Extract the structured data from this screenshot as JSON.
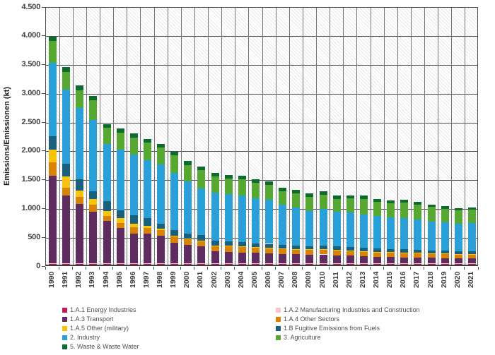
{
  "y_axis": {
    "title": "Emissions/Emissionen (kt)",
    "tick_labels": [
      "4.500",
      "4.000",
      "3.500",
      "3.000",
      "2.500",
      "2.000",
      "1.500",
      "1.000",
      "500",
      "0"
    ],
    "tick_values": [
      4500,
      4000,
      3500,
      3000,
      2500,
      2000,
      1500,
      1000,
      500,
      0
    ]
  },
  "colors": {
    "grid": "#4d4d4d",
    "vertical_grid": "#757575",
    "axis": "#3f3f3f",
    "tick_text": "#3f3f3f",
    "legend_text": "#4f4f4f"
  },
  "chart_data": {
    "type": "bar",
    "stacked": true,
    "title": "",
    "xlabel": "",
    "ylabel": "Emissions/Emissionen (kt)",
    "ylim": [
      0,
      4500
    ],
    "grid": true,
    "background_hatch": true,
    "legend_position": "bottom",
    "categories": [
      "1990",
      "1991",
      "1992",
      "1993",
      "1994",
      "1995",
      "1996",
      "1997",
      "1998",
      "1999",
      "2000",
      "2001",
      "2002",
      "2003",
      "2004",
      "2005",
      "2006",
      "2007",
      "2008",
      "2009",
      "2010",
      "2011",
      "2012",
      "2013",
      "2014",
      "2015",
      "2016",
      "2017",
      "2018",
      "2019",
      "2020",
      "2021"
    ],
    "series": [
      {
        "name": "1.A.1 Energy Industries",
        "color": "#C11A5B",
        "values": [
          20,
          20,
          20,
          20,
          20,
          20,
          20,
          20,
          20,
          20,
          20,
          20,
          20,
          20,
          20,
          20,
          20,
          20,
          20,
          20,
          20,
          20,
          18,
          18,
          16,
          16,
          16,
          16,
          16,
          16,
          14,
          14
        ]
      },
      {
        "name": "1.A.2 Manufacturing Industries and Construction",
        "color": "#F6C6CC",
        "values": [
          10,
          10,
          10,
          8,
          8,
          8,
          8,
          8,
          8,
          8,
          8,
          8,
          8,
          8,
          8,
          8,
          8,
          8,
          8,
          8,
          8,
          8,
          8,
          8,
          8,
          8,
          8,
          8,
          8,
          8,
          8,
          8
        ]
      },
      {
        "name": "1.A.3 Transport",
        "color": "#5F2C60",
        "values": [
          1520,
          1170,
          1027,
          895,
          733,
          609,
          515,
          506,
          474,
          358,
          310,
          291,
          211,
          198,
          185,
          178,
          173,
          161,
          153,
          145,
          150,
          136,
          131,
          126,
          116,
          108,
          103,
          99,
          95,
          91,
          85,
          85
        ]
      },
      {
        "name": "1.A.4 Other Sectors",
        "color": "#D98304",
        "values": [
          226,
          140,
          123,
          124,
          82,
          91,
          102,
          99,
          95,
          104,
          107,
          99,
          90,
          103,
          103,
          98,
          95,
          91,
          91,
          91,
          94,
          91,
          90,
          82,
          82,
          82,
          82,
          79,
          78,
          74,
          74,
          74
        ]
      },
      {
        "name": "1.A.5 Other (military)",
        "color": "#F6C30D",
        "values": [
          218,
          190,
          102,
          90,
          91,
          82,
          62,
          41,
          28,
          10,
          8,
          5,
          5,
          4,
          4,
          4,
          4,
          3,
          3,
          3,
          3,
          3,
          3,
          3,
          3,
          3,
          3,
          3,
          3,
          3,
          3,
          3
        ]
      },
      {
        "name": "1.B Fugitive Emissions from Fuels",
        "color": "#1A5F7B",
        "values": [
          238,
          226,
          206,
          144,
          164,
          131,
          153,
          137,
          91,
          105,
          90,
          87,
          86,
          70,
          70,
          66,
          62,
          57,
          57,
          53,
          57,
          57,
          58,
          54,
          53,
          54,
          54,
          53,
          50,
          49,
          49,
          49
        ]
      },
      {
        "name": "2. Industry",
        "color": "#29A0D8",
        "values": [
          1280,
          1288,
          1234,
          1234,
          1000,
          1062,
          1049,
          1007,
          1020,
          987,
          905,
          814,
          835,
          822,
          814,
          781,
          768,
          699,
          658,
          617,
          642,
          601,
          600,
          576,
          564,
          555,
          547,
          522,
          502,
          490,
          477,
          489
        ]
      },
      {
        "name": "3. Agriculture",
        "color": "#57A733",
        "values": [
          370,
          304,
          308,
          338,
          275,
          288,
          300,
          308,
          296,
          308,
          280,
          314,
          284,
          269,
          281,
          264,
          256,
          239,
          247,
          246,
          246,
          230,
          246,
          275,
          251,
          247,
          268,
          264,
          251,
          243,
          235,
          235
        ]
      },
      {
        "name": "5. Waste & Waste Water",
        "color": "#0D6B2F",
        "values": [
          82,
          82,
          82,
          74,
          70,
          70,
          70,
          62,
          66,
          62,
          70,
          68,
          53,
          60,
          57,
          65,
          58,
          58,
          58,
          54,
          58,
          57,
          49,
          54,
          49,
          49,
          53,
          49,
          45,
          41,
          41,
          41
        ]
      }
    ]
  },
  "legend": {
    "left_column_series": [
      0,
      2,
      4,
      6,
      8
    ],
    "right_column_series": [
      1,
      3,
      5,
      7
    ]
  }
}
